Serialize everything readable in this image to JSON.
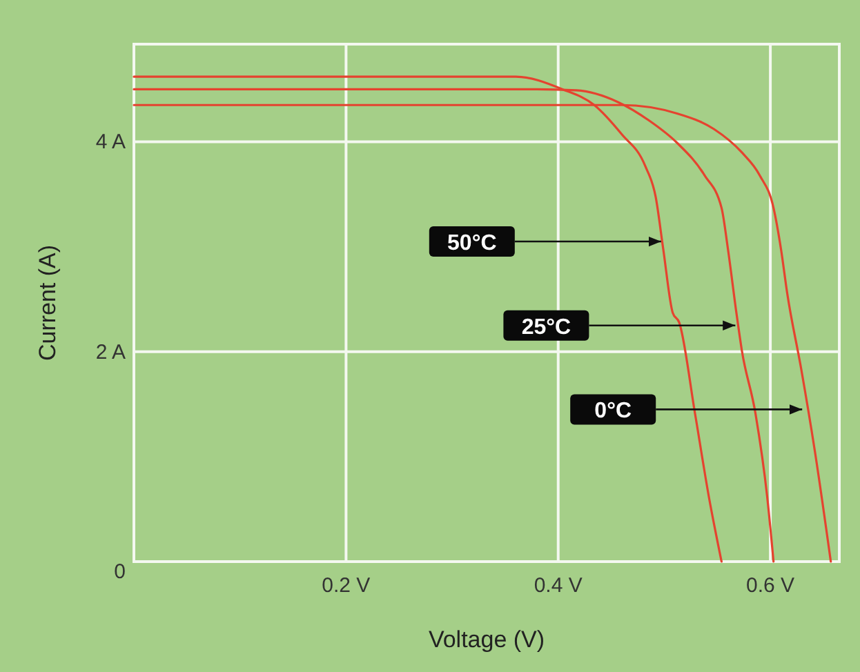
{
  "chart_data": {
    "type": "line",
    "xlabel": "Voltage (V)",
    "ylabel": "Current (A)",
    "xlim": [
      0,
      0.665
    ],
    "ylim": [
      0,
      4.93
    ],
    "xticks": [
      {
        "value": 0.2,
        "label": "0.2 V"
      },
      {
        "value": 0.4,
        "label": "0.4 V"
      },
      {
        "value": 0.6,
        "label": "0.6 V"
      }
    ],
    "yticks": [
      0,
      {
        "value": 2,
        "label": "2 A"
      },
      {
        "value": 4,
        "label": "4 A"
      }
    ],
    "grid": true,
    "marker": "none",
    "line_style": "solid",
    "series": [
      {
        "color": "#e5432f",
        "x": [
          0,
          0.36,
          0.404,
          0.434,
          0.46,
          0.482,
          0.492,
          0.499,
          0.508,
          0.514,
          0.529,
          0.542,
          0.554
        ],
        "values": [
          4.62,
          4.62,
          4.5,
          4.35,
          4.07,
          3.77,
          3.47,
          2.98,
          2.37,
          2.28,
          1.41,
          0.62,
          0
        ]
      },
      {
        "color": "#e5432f",
        "x": [
          0,
          0.38,
          0.417,
          0.456,
          0.486,
          0.512,
          0.538,
          0.554,
          0.56,
          0.568,
          0.573,
          0.586,
          0.597,
          0.603
        ],
        "values": [
          4.5,
          4.5,
          4.49,
          4.38,
          4.2,
          3.99,
          3.68,
          3.37,
          2.98,
          2.37,
          2.02,
          1.41,
          0.62,
          0
        ]
      },
      {
        "color": "#e5432f",
        "x": [
          0,
          0.46,
          0.512,
          0.547,
          0.573,
          0.59,
          0.603,
          0.61,
          0.616,
          0.629,
          0.642,
          0.657
        ],
        "values": [
          4.35,
          4.35,
          4.27,
          4.12,
          3.9,
          3.68,
          3.37,
          2.98,
          2.55,
          1.84,
          1.05,
          0
        ]
      }
    ],
    "annotations": [
      {
        "text": "50°C",
        "x": 0.497,
        "y": 3.05
      },
      {
        "text": "25°C",
        "x": 0.567,
        "y": 2.25
      },
      {
        "text": "0°C",
        "x": 0.63,
        "y": 1.45
      }
    ]
  }
}
